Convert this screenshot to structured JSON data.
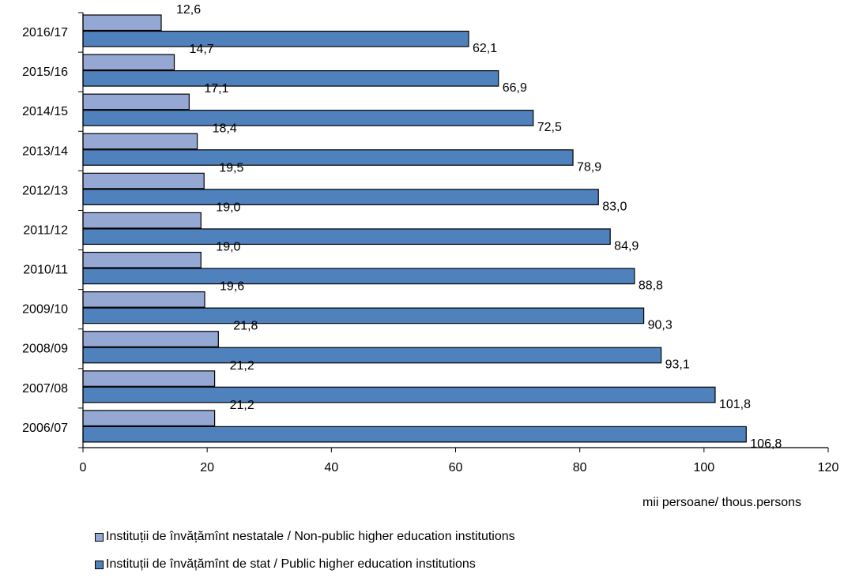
{
  "chart_data": {
    "type": "bar",
    "orientation": "horizontal",
    "categories": [
      "2016/17",
      "2015/16",
      "2014/15",
      "2013/14",
      "2012/13",
      "2011/12",
      "2010/11",
      "2009/10",
      "2008/09",
      "2007/08",
      "2006/07"
    ],
    "series": [
      {
        "name": "Instituții de învățămînt nestatale / Non-public higher education institutions",
        "color": "#95A8D3",
        "values": [
          12.6,
          14.7,
          17.1,
          18.4,
          19.5,
          19.0,
          19.0,
          19.6,
          21.8,
          21.2,
          21.2
        ],
        "labels": [
          "12,6",
          "14,7",
          "17,1",
          "18,4",
          "19,5",
          "19,0",
          "19,0",
          "19,6",
          "21,8",
          "21,2",
          "21,2"
        ]
      },
      {
        "name": "Instituții de învățămînt de stat / Public higher education institutions",
        "color": "#4F81BD",
        "values": [
          62.1,
          66.9,
          72.5,
          78.9,
          83.0,
          84.9,
          88.8,
          90.3,
          93.1,
          101.8,
          106.8
        ],
        "labels": [
          "62,1",
          "66,9",
          "72,5",
          "78,9",
          "83,0",
          "84,9",
          "88,8",
          "90,3",
          "93,1",
          "101,8",
          "106,8"
        ]
      }
    ],
    "xlim": [
      0,
      120
    ],
    "xticks": [
      "0",
      "20",
      "40",
      "60",
      "80",
      "100",
      "120"
    ],
    "xlabel": "mii persoane/ thous.persons",
    "grid": false,
    "legend_position": "bottom-left"
  }
}
